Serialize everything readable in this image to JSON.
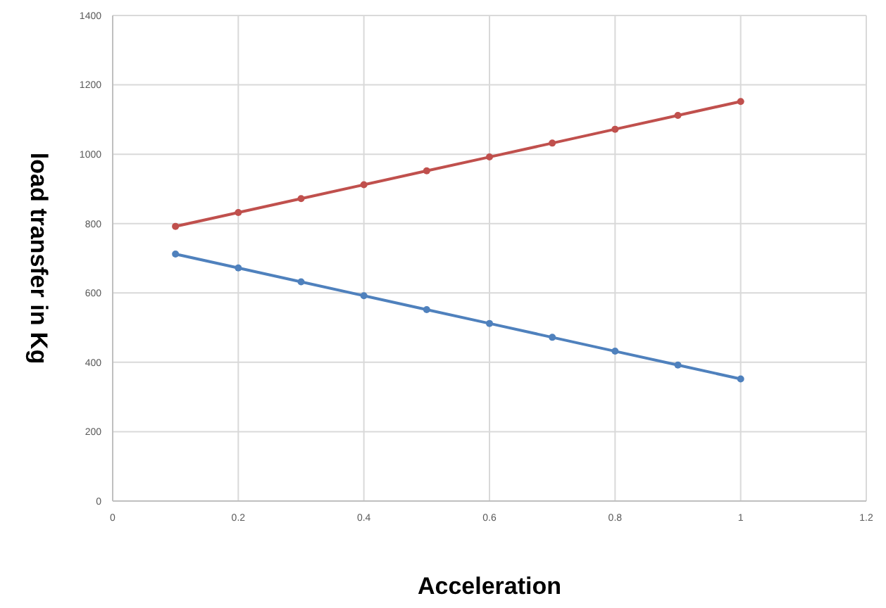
{
  "chart_data": {
    "type": "line",
    "xlabel": "Acceleration",
    "ylabel": "load transfer in Kg",
    "x": [
      0.1,
      0.2,
      0.3,
      0.4,
      0.5,
      0.6,
      0.7,
      0.8,
      0.9,
      1
    ],
    "series": [
      {
        "color": "#c0504d",
        "values": [
          792,
          832,
          872,
          912,
          952,
          992,
          1032,
          1072,
          1112,
          1152
        ]
      },
      {
        "color": "#4f81bd",
        "values": [
          712,
          672,
          632,
          592,
          552,
          512,
          472,
          432,
          392,
          352
        ]
      }
    ],
    "xlim": [
      0,
      1.2
    ],
    "xticks": [
      0,
      0.2,
      0.4,
      0.6,
      0.8,
      1,
      1.2
    ],
    "ylim": [
      0,
      1400
    ],
    "yticks": [
      0,
      200,
      400,
      600,
      800,
      1000,
      1200,
      1400
    ],
    "grid": true,
    "marker": "circle",
    "line_style": "solid"
  }
}
